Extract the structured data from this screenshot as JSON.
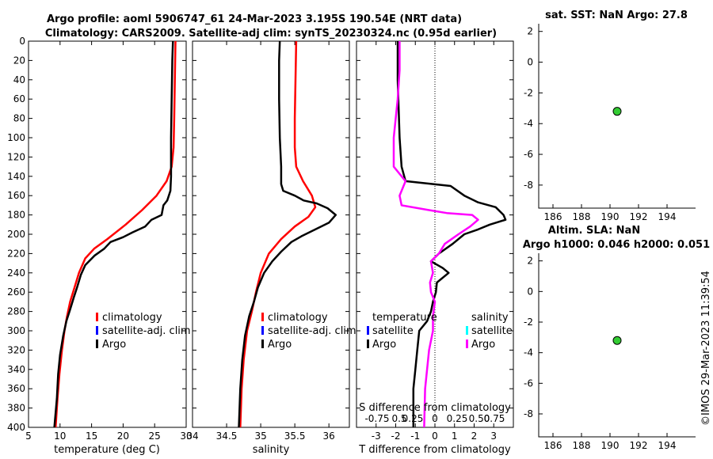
{
  "header": {
    "title_line1": "Argo profile: aoml 5906747_61 24-Mar-2023 3.195S 190.54E (NRT data)",
    "title_line2": "Climatology: CARS2009. Satellite-adj clim: synTS_20230324.nc (0.95d earlier)",
    "side_stamp": "©IMOS 29-Mar-2023 11:39:54"
  },
  "colors": {
    "climatology": "#ff0000",
    "satellite": "#0000ff",
    "argo": "#000000",
    "salinity_diff": "#ff00ff",
    "salinity_satellite": "#00ffff",
    "marker_fill": "#33cc33"
  },
  "chart_data": [
    {
      "id": "temperature",
      "type": "line",
      "xlabel": "temperature (deg C)",
      "xlim": [
        5,
        30
      ],
      "xticks": [
        5,
        10,
        15,
        20,
        25,
        30
      ],
      "ylim": [
        400,
        0
      ],
      "yticks": [
        0,
        20,
        40,
        60,
        80,
        100,
        120,
        140,
        160,
        180,
        200,
        220,
        240,
        260,
        280,
        300,
        320,
        340,
        360,
        380,
        400
      ],
      "legend": {
        "position": "lower-right",
        "entries": [
          "climatology",
          "satellite-adj. clim",
          "Argo"
        ]
      },
      "series": [
        {
          "name": "climatology",
          "color": "#ff0000",
          "points": [
            [
              28.3,
              0
            ],
            [
              28.2,
              40
            ],
            [
              28.1,
              80
            ],
            [
              28.0,
              110
            ],
            [
              27.7,
              130
            ],
            [
              26.9,
              145
            ],
            [
              25.3,
              160
            ],
            [
              23.0,
              175
            ],
            [
              20.4,
              190
            ],
            [
              17.5,
              205
            ],
            [
              15.4,
              215
            ],
            [
              14.0,
              225
            ],
            [
              13.0,
              240
            ],
            [
              12.3,
              255
            ],
            [
              11.6,
              270
            ],
            [
              11.1,
              285
            ],
            [
              10.7,
              300
            ],
            [
              10.3,
              320
            ],
            [
              9.9,
              345
            ],
            [
              9.6,
              370
            ],
            [
              9.3,
              400
            ]
          ]
        },
        {
          "name": "Argo",
          "color": "#000000",
          "points": [
            [
              27.9,
              0
            ],
            [
              27.8,
              20
            ],
            [
              27.7,
              60
            ],
            [
              27.6,
              100
            ],
            [
              27.6,
              140
            ],
            [
              27.5,
              155
            ],
            [
              27.0,
              165
            ],
            [
              26.4,
              170
            ],
            [
              26.1,
              180
            ],
            [
              24.5,
              185
            ],
            [
              23.5,
              192
            ],
            [
              21.5,
              198
            ],
            [
              20.0,
              203
            ],
            [
              18.0,
              208
            ],
            [
              17.0,
              215
            ],
            [
              15.5,
              222
            ],
            [
              14.0,
              232
            ],
            [
              13.3,
              242
            ],
            [
              12.7,
              255
            ],
            [
              12.2,
              265
            ],
            [
              11.6,
              278
            ],
            [
              11.0,
              290
            ],
            [
              10.5,
              305
            ],
            [
              10.0,
              325
            ],
            [
              9.7,
              345
            ],
            [
              9.5,
              370
            ],
            [
              9.1,
              400
            ]
          ]
        }
      ]
    },
    {
      "id": "salinity",
      "type": "line",
      "xlabel": "salinity",
      "xlim": [
        34,
        36.3
      ],
      "xticks": [
        34,
        34.5,
        35,
        35.5,
        36
      ],
      "ylim": [
        400,
        0
      ],
      "legend": {
        "position": "lower-right",
        "entries": [
          "climatology",
          "satellite-adj. clim",
          "Argo"
        ]
      },
      "series": [
        {
          "name": "climatology",
          "color": "#ff0000",
          "points": [
            [
              35.52,
              0
            ],
            [
              35.51,
              40
            ],
            [
              35.5,
              80
            ],
            [
              35.5,
              110
            ],
            [
              35.52,
              130
            ],
            [
              35.62,
              145
            ],
            [
              35.75,
              160
            ],
            [
              35.8,
              172
            ],
            [
              35.7,
              182
            ],
            [
              35.5,
              192
            ],
            [
              35.3,
              205
            ],
            [
              35.12,
              220
            ],
            [
              35.0,
              240
            ],
            [
              34.93,
              260
            ],
            [
              34.87,
              280
            ],
            [
              34.8,
              300
            ],
            [
              34.75,
              330
            ],
            [
              34.72,
              360
            ],
            [
              34.7,
              400
            ]
          ]
        },
        {
          "name": "Argo",
          "color": "#000000",
          "points": [
            [
              35.28,
              0
            ],
            [
              35.27,
              20
            ],
            [
              35.27,
              60
            ],
            [
              35.28,
              100
            ],
            [
              35.3,
              130
            ],
            [
              35.3,
              148
            ],
            [
              35.33,
              155
            ],
            [
              35.5,
              160
            ],
            [
              35.63,
              165
            ],
            [
              35.82,
              168
            ],
            [
              35.98,
              173
            ],
            [
              36.1,
              180
            ],
            [
              36.0,
              188
            ],
            [
              35.8,
              195
            ],
            [
              35.6,
              202
            ],
            [
              35.45,
              208
            ],
            [
              35.3,
              218
            ],
            [
              35.17,
              228
            ],
            [
              35.05,
              240
            ],
            [
              34.96,
              255
            ],
            [
              34.9,
              270
            ],
            [
              34.83,
              285
            ],
            [
              34.77,
              305
            ],
            [
              34.73,
              330
            ],
            [
              34.7,
              360
            ],
            [
              34.68,
              400
            ]
          ]
        }
      ]
    },
    {
      "id": "difference",
      "type": "line",
      "xlabel": "T difference from climatology",
      "xlabel_top": "S difference from climatology",
      "xlim": [
        -4,
        4
      ],
      "xticks": [
        -3,
        -2,
        -1,
        0,
        1,
        2,
        3
      ],
      "top_ticks": [
        "-0.75",
        "0.5",
        "0.25",
        "0",
        "0.25",
        "0.50",
        "0.75"
      ],
      "ylim": [
        400,
        0
      ],
      "legend": {
        "position": "lower",
        "temperature_heading": "temperature",
        "salinity_heading": "salinity",
        "temperature_entries": [
          "satellite",
          "Argo"
        ],
        "salinity_entries": [
          "satellite",
          "Argo"
        ]
      },
      "series": [
        {
          "name": "Argo temperature difference",
          "color": "#000000",
          "points": [
            [
              -1.9,
              0
            ],
            [
              -1.9,
              40
            ],
            [
              -1.8,
              100
            ],
            [
              -1.7,
              130
            ],
            [
              -1.5,
              145
            ],
            [
              0.8,
              150
            ],
            [
              1.5,
              160
            ],
            [
              2.2,
              167
            ],
            [
              3.1,
              172
            ],
            [
              3.5,
              180
            ],
            [
              3.6,
              185
            ],
            [
              2.8,
              190
            ],
            [
              2.2,
              195
            ],
            [
              1.5,
              200
            ],
            [
              0.9,
              210
            ],
            [
              0.2,
              220
            ],
            [
              -0.2,
              228
            ],
            [
              0.4,
              235
            ],
            [
              0.7,
              240
            ],
            [
              0.1,
              250
            ],
            [
              0.05,
              260
            ],
            [
              -0.1,
              270
            ],
            [
              -0.2,
              280
            ],
            [
              -0.4,
              290
            ],
            [
              -0.8,
              300
            ],
            [
              -0.9,
              320
            ],
            [
              -1.0,
              340
            ],
            [
              -1.1,
              360
            ],
            [
              -1.1,
              400
            ]
          ]
        },
        {
          "name": "Argo salinity difference",
          "color": "#ff00ff",
          "points": [
            [
              -1.8,
              0
            ],
            [
              -1.8,
              30
            ],
            [
              -1.9,
              60
            ],
            [
              -2.1,
              100
            ],
            [
              -2.1,
              130
            ],
            [
              -1.5,
              145
            ],
            [
              -1.8,
              160
            ],
            [
              -1.7,
              170
            ],
            [
              -0.3,
              175
            ],
            [
              0.6,
              178
            ],
            [
              1.9,
              180
            ],
            [
              2.2,
              185
            ],
            [
              1.8,
              192
            ],
            [
              1.2,
              200
            ],
            [
              0.5,
              210
            ],
            [
              0.2,
              220
            ],
            [
              -0.2,
              228
            ],
            [
              -0.1,
              240
            ],
            [
              -0.25,
              250
            ],
            [
              -0.2,
              260
            ],
            [
              0.0,
              270
            ],
            [
              -0.1,
              285
            ],
            [
              -0.1,
              300
            ],
            [
              -0.3,
              320
            ],
            [
              -0.4,
              340
            ],
            [
              -0.5,
              360
            ],
            [
              -0.55,
              400
            ]
          ]
        }
      ]
    },
    {
      "id": "sst",
      "type": "scatter",
      "title": "sat. SST: NaN Argo: 27.8",
      "xlim": [
        185,
        196
      ],
      "xticks": [
        186,
        188,
        190,
        192,
        194
      ],
      "ylim": [
        -9.5,
        2.5
      ],
      "yticks": [
        2,
        0,
        -2,
        -4,
        -6,
        -8
      ],
      "points": [
        [
          190.5,
          -3.2
        ]
      ]
    },
    {
      "id": "sla",
      "type": "scatter",
      "title_line1": "Altim. SLA: NaN",
      "title_line2": "Argo h1000: 0.046 h2000: 0.051",
      "xlim": [
        185,
        196
      ],
      "xticks": [
        186,
        188,
        190,
        192,
        194
      ],
      "ylim": [
        -9.5,
        2.5
      ],
      "yticks": [
        2,
        0,
        -2,
        -4,
        -6,
        -8
      ],
      "points": [
        [
          190.5,
          -3.2
        ]
      ]
    }
  ]
}
